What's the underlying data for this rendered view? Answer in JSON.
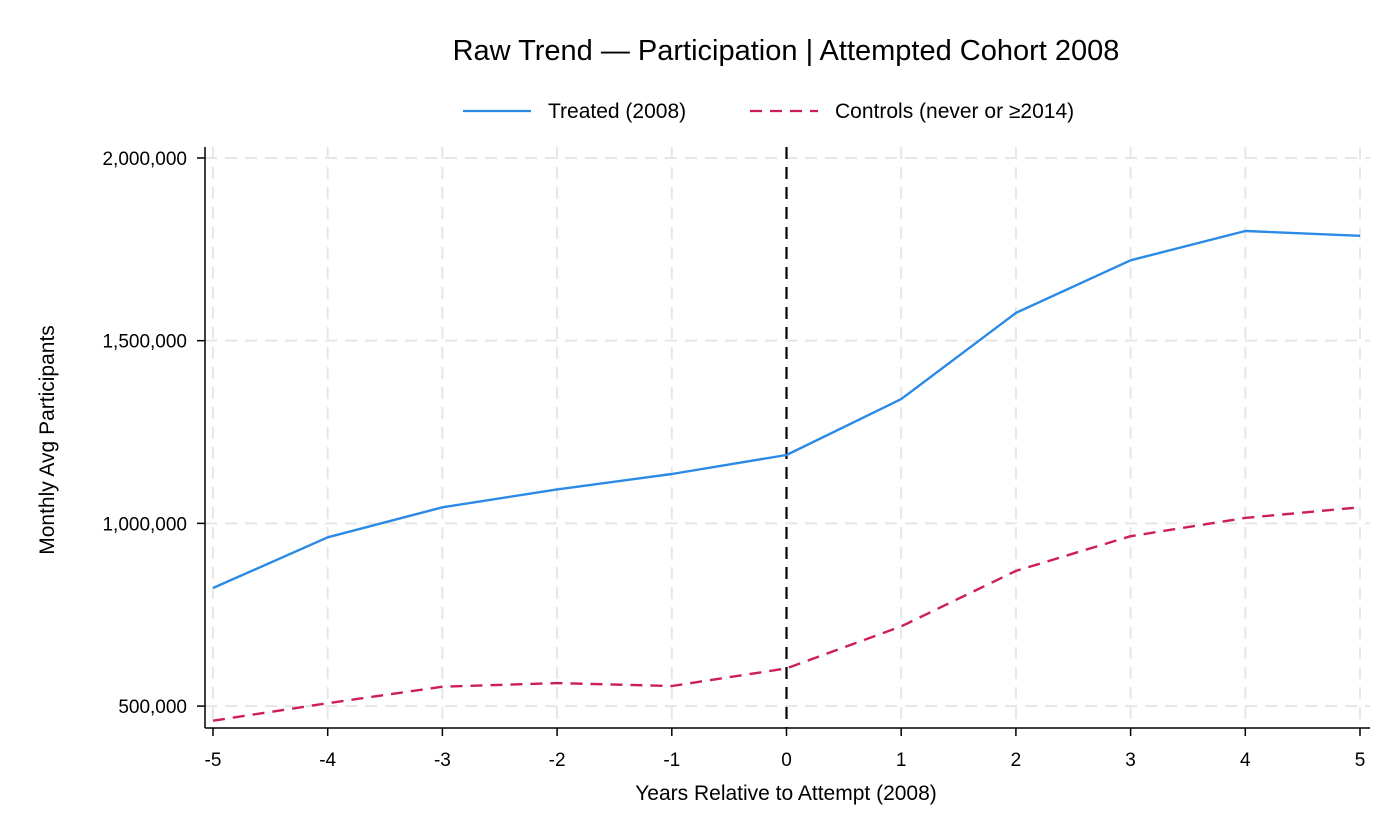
{
  "chart_data": {
    "type": "line",
    "title": "Raw Trend — Participation | Attempted Cohort 2008",
    "xlabel": "Years Relative to Attempt (2008)",
    "ylabel": "Monthly Avg Participants",
    "x": [
      -5,
      -4,
      -3,
      -2,
      -1,
      0,
      1,
      2,
      3,
      4,
      5
    ],
    "x_tick_labels": [
      "-5",
      "-4",
      "-3",
      "-2",
      "-1",
      "0",
      "1",
      "2",
      "3",
      "4",
      "5"
    ],
    "y_ticks": [
      500000,
      1000000,
      1500000,
      2000000
    ],
    "y_tick_labels": [
      "500,000",
      "1,000,000",
      "1,500,000",
      "2,000,000"
    ],
    "xlim": [
      -5,
      5
    ],
    "ylim": [
      440000,
      2030000
    ],
    "grid": true,
    "legend_position": "top",
    "reference_line_x": 0,
    "series": [
      {
        "name": "Treated (2008)",
        "color": "#2b8ae6",
        "style": "solid",
        "values": [
          823000,
          962000,
          1044000,
          1093000,
          1135000,
          1187000,
          1340000,
          1576000,
          1720000,
          1800000,
          1787000
        ]
      },
      {
        "name": "Controls (never or ≥2014)",
        "color": "#cc1f5a",
        "style": "dashed",
        "values": [
          460000,
          508000,
          553000,
          563000,
          555000,
          603000,
          718000,
          870000,
          965000,
          1015000,
          1044000
        ]
      }
    ]
  }
}
